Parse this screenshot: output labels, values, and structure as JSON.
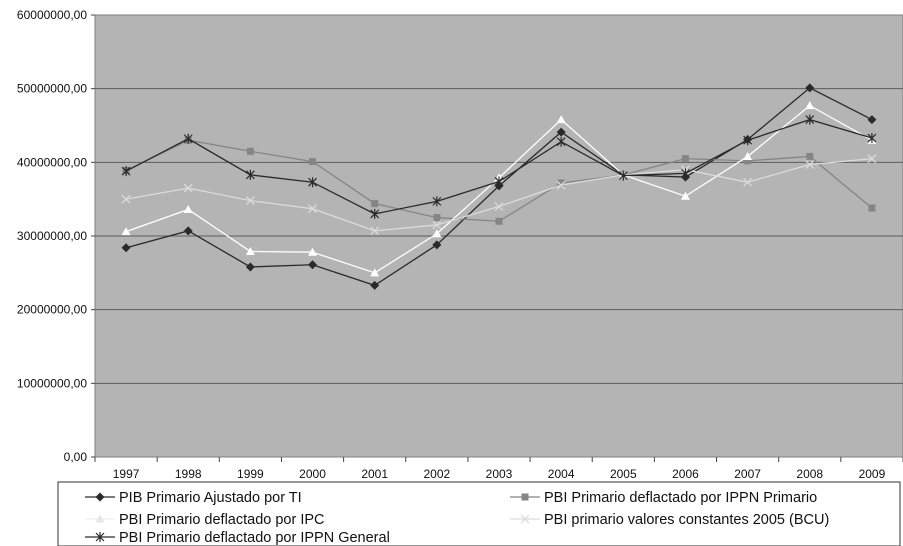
{
  "chart_data": {
    "type": "line",
    "title": "",
    "xlabel": "",
    "ylabel": "",
    "categories": [
      "1997",
      "1998",
      "1999",
      "2000",
      "2001",
      "2002",
      "2003",
      "2004",
      "2005",
      "2006",
      "2007",
      "2008",
      "2009"
    ],
    "ylim": [
      0,
      60000000
    ],
    "yticks": [
      "0,00",
      "10000000,00",
      "20000000,00",
      "30000000,00",
      "40000000,00",
      "50000000,00",
      "60000000,00"
    ],
    "grid": true,
    "legend_position": "bottom",
    "series": [
      {
        "name": "PIB Primario Ajustado por TI",
        "marker": "diamond",
        "color": "#2a2a2a",
        "values": [
          28400000,
          30700000,
          25800000,
          26100000,
          23300000,
          28800000,
          36800000,
          44100000,
          38300000,
          38000000,
          43100000,
          50100000,
          45800000
        ]
      },
      {
        "name": "PBI Primario deflactado por IPPN Primario",
        "marker": "square",
        "color": "#858585",
        "values": [
          38900000,
          43000000,
          41500000,
          40100000,
          34400000,
          32500000,
          32000000,
          37200000,
          38300000,
          40500000,
          40200000,
          40800000,
          33800000
        ]
      },
      {
        "name": "PBI Primario deflactado por IPC",
        "marker": "triangle",
        "color": "#ffffff",
        "values": [
          30600000,
          33600000,
          27900000,
          27800000,
          25000000,
          30300000,
          37900000,
          45800000,
          38300000,
          35400000,
          40800000,
          47700000,
          43000000
        ]
      },
      {
        "name": "PBI primario valores constantes 2005 (BCU)",
        "marker": "x",
        "color": "#dcdcdc",
        "values": [
          35000000,
          36500000,
          34800000,
          33700000,
          30700000,
          31500000,
          34000000,
          36900000,
          38300000,
          39000000,
          37300000,
          39700000,
          40500000
        ]
      },
      {
        "name": "PBI Primario deflactado por IPPN General",
        "marker": "star",
        "color": "#2a2a2a",
        "values": [
          38800000,
          43200000,
          38300000,
          37300000,
          33000000,
          34700000,
          37400000,
          42800000,
          38200000,
          38500000,
          43000000,
          45800000,
          43300000
        ]
      }
    ]
  }
}
